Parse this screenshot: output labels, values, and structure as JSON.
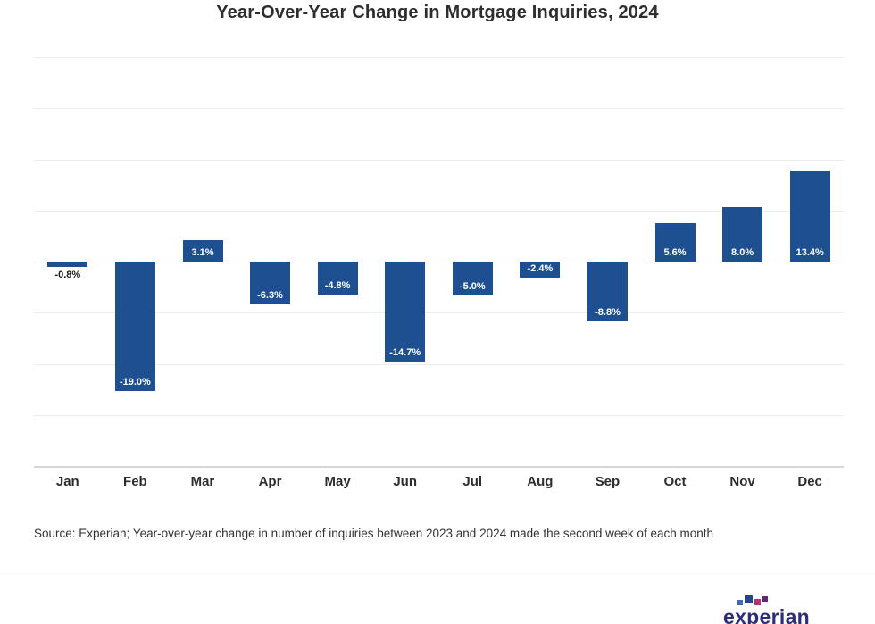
{
  "title": "Year-Over-Year Change in Mortgage Inquiries, 2024",
  "source_note": "Source: Experian; Year-over-year change in number of inquiries between 2023 and 2024 made the second week of each month",
  "logo": {
    "text": "experian"
  },
  "chart_data": {
    "type": "bar",
    "title": "Year-Over-Year Change in Mortgage Inquiries, 2024",
    "categories": [
      "Jan",
      "Feb",
      "Mar",
      "Apr",
      "May",
      "Jun",
      "Jul",
      "Aug",
      "Sep",
      "Oct",
      "Nov",
      "Dec"
    ],
    "values": [
      -0.8,
      -19.0,
      3.1,
      -6.3,
      -4.8,
      -14.7,
      -5.0,
      -2.4,
      -8.8,
      5.6,
      8.0,
      13.4
    ],
    "data_labels": [
      "-0.8%",
      "-19.0%",
      "3.1%",
      "-6.3%",
      "-4.8%",
      "-14.7%",
      "-5.0%",
      "-2.4%",
      "-8.8%",
      "5.6%",
      "8.0%",
      "13.4%"
    ],
    "xlabel": "",
    "ylabel": "",
    "ylim": [
      -30,
      30
    ],
    "gridline_step": 7.5,
    "grid": true,
    "legend": false,
    "y_axis_tick_labels": [],
    "bar_color": "#1d4f91",
    "inside_label_color": "#ffffff",
    "outside_label_color": "#1a1a1a"
  }
}
